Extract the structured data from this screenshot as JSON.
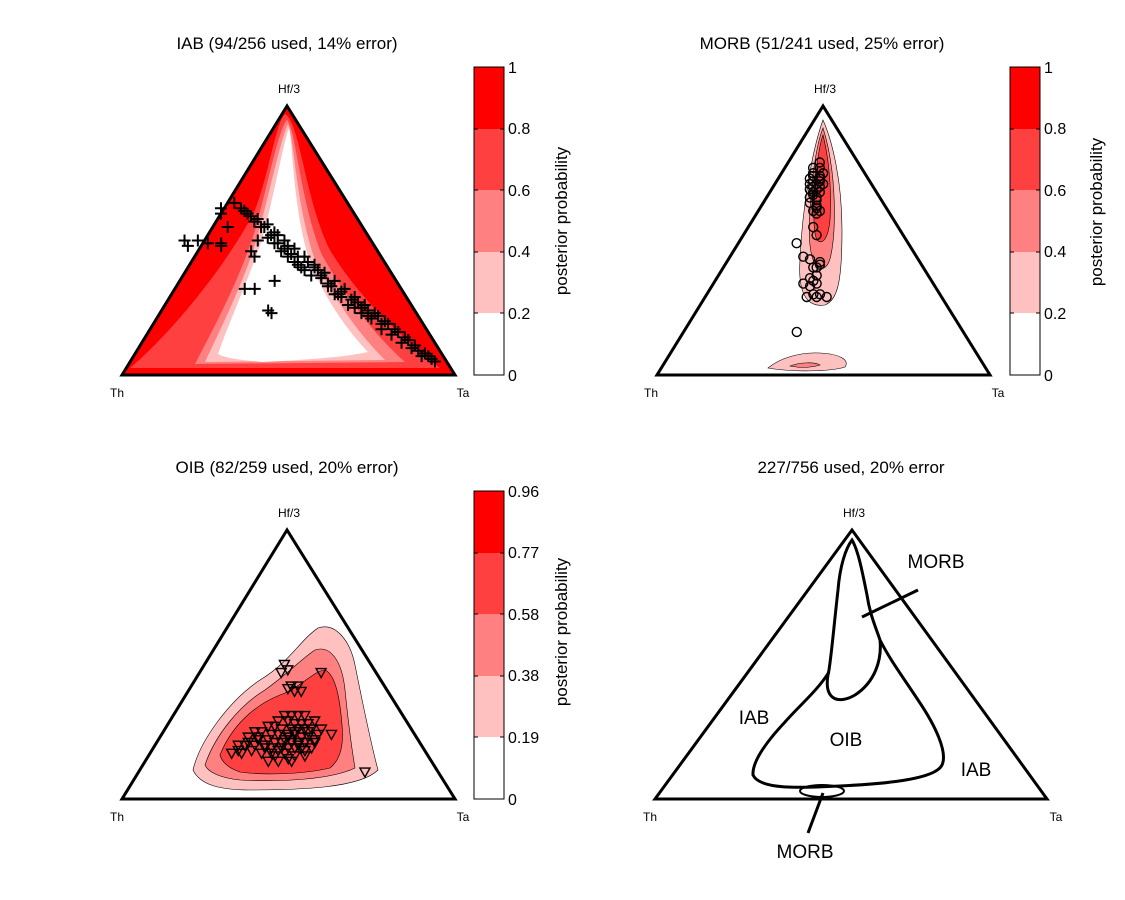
{
  "figure": {
    "colors": {
      "bands": [
        "#ffffff",
        "#ffc0c0",
        "#ff8080",
        "#ff4040",
        "#ff0000"
      ],
      "line": "#000000"
    },
    "vertex_labels": {
      "top": "Hf/3",
      "left": "Th",
      "right": "Ta"
    }
  },
  "chart_data": [
    {
      "type": "ternary_contour",
      "title": "IAB (94/256 used, 14% error)",
      "class": "IAB",
      "used": 94,
      "total": 256,
      "error_percent": 14,
      "marker": "plus",
      "colorbar": {
        "label": "posterior probability",
        "ticks": [
          "0",
          "0.2",
          "0.4",
          "0.6",
          "0.8",
          "1"
        ],
        "range": [
          0,
          1
        ]
      },
      "samples": [
        [
          0.34,
          0.64
        ],
        [
          0.4,
          0.57
        ],
        [
          0.44,
          0.51
        ],
        [
          0.46,
          0.49
        ],
        [
          0.48,
          0.46
        ],
        [
          0.5,
          0.44
        ],
        [
          0.52,
          0.42
        ],
        [
          0.54,
          0.4
        ],
        [
          0.36,
          0.62
        ],
        [
          0.38,
          0.6
        ],
        [
          0.42,
          0.55
        ],
        [
          0.45,
          0.52
        ],
        [
          0.47,
          0.49
        ],
        [
          0.49,
          0.47
        ],
        [
          0.51,
          0.45
        ],
        [
          0.53,
          0.41
        ],
        [
          0.55,
          0.39
        ],
        [
          0.57,
          0.37
        ],
        [
          0.6,
          0.36
        ],
        [
          0.62,
          0.34
        ],
        [
          0.65,
          0.3
        ],
        [
          0.68,
          0.26
        ],
        [
          0.7,
          0.25
        ],
        [
          0.72,
          0.23
        ],
        [
          0.75,
          0.21
        ],
        [
          0.78,
          0.17
        ],
        [
          0.81,
          0.15
        ],
        [
          0.84,
          0.12
        ],
        [
          0.87,
          0.1
        ],
        [
          0.9,
          0.07
        ],
        [
          0.41,
          0.58
        ],
        [
          0.43,
          0.55
        ],
        [
          0.46,
          0.53
        ],
        [
          0.49,
          0.5
        ],
        [
          0.52,
          0.47
        ],
        [
          0.55,
          0.44
        ],
        [
          0.58,
          0.41
        ],
        [
          0.61,
          0.38
        ],
        [
          0.64,
          0.35
        ],
        [
          0.67,
          0.32
        ],
        [
          0.7,
          0.29
        ],
        [
          0.73,
          0.26
        ],
        [
          0.76,
          0.23
        ],
        [
          0.79,
          0.2
        ],
        [
          0.82,
          0.17
        ],
        [
          0.85,
          0.14
        ],
        [
          0.88,
          0.11
        ],
        [
          0.91,
          0.08
        ],
        [
          0.93,
          0.06
        ],
        [
          0.39,
          0.59
        ],
        [
          0.37,
          0.61
        ],
        [
          0.44,
          0.56
        ],
        [
          0.5,
          0.48
        ],
        [
          0.56,
          0.42
        ],
        [
          0.59,
          0.39
        ],
        [
          0.63,
          0.33
        ],
        [
          0.66,
          0.31
        ],
        [
          0.69,
          0.28
        ],
        [
          0.71,
          0.27
        ],
        [
          0.74,
          0.24
        ],
        [
          0.77,
          0.22
        ],
        [
          0.8,
          0.19
        ],
        [
          0.83,
          0.16
        ],
        [
          0.86,
          0.13
        ],
        [
          0.89,
          0.09
        ],
        [
          0.92,
          0.07
        ],
        [
          0.94,
          0.05
        ],
        [
          0.47,
          0.52
        ],
        [
          0.53,
          0.44
        ],
        [
          0.58,
          0.4
        ],
        [
          0.6,
          0.37
        ],
        [
          0.62,
          0.33
        ],
        [
          0.66,
          0.29
        ],
        [
          0.72,
          0.25
        ],
        [
          0.74,
          0.22
        ],
        [
          0.78,
          0.19
        ],
        [
          0.64,
          0.3
        ],
        [
          0.3,
          0.62
        ],
        [
          0.3,
          0.6
        ],
        [
          0.41,
          0.5
        ],
        [
          0.32,
          0.55
        ],
        [
          0.39,
          0.46
        ],
        [
          0.3,
          0.49
        ],
        [
          0.26,
          0.49
        ],
        [
          0.3,
          0.48
        ],
        [
          0.23,
          0.5
        ],
        [
          0.2,
          0.48
        ],
        [
          0.19,
          0.5
        ],
        [
          0.4,
          0.44
        ],
        [
          0.46,
          0.35
        ],
        [
          0.4,
          0.32
        ],
        [
          0.37,
          0.32
        ],
        [
          0.44,
          0.24
        ],
        [
          0.45,
          0.23
        ]
      ]
    },
    {
      "type": "ternary_contour",
      "title": "MORB (51/241 used, 25% error)",
      "class": "MORB",
      "used": 51,
      "total": 241,
      "error_percent": 25,
      "marker": "circle",
      "colorbar": {
        "label": "posterior probability",
        "ticks": [
          "0",
          "0.2",
          "0.4",
          "0.6",
          "0.8",
          "1"
        ],
        "range": [
          0,
          1
        ]
      },
      "samples": [
        [
          0.49,
          0.79
        ],
        [
          0.47,
          0.77
        ],
        [
          0.49,
          0.77
        ],
        [
          0.47,
          0.75
        ],
        [
          0.5,
          0.75
        ],
        [
          0.47,
          0.74
        ],
        [
          0.49,
          0.74
        ],
        [
          0.46,
          0.73
        ],
        [
          0.49,
          0.73
        ],
        [
          0.47,
          0.72
        ],
        [
          0.49,
          0.72
        ],
        [
          0.46,
          0.71
        ],
        [
          0.48,
          0.71
        ],
        [
          0.5,
          0.71
        ],
        [
          0.47,
          0.7
        ],
        [
          0.49,
          0.7
        ],
        [
          0.46,
          0.69
        ],
        [
          0.48,
          0.69
        ],
        [
          0.47,
          0.68
        ],
        [
          0.49,
          0.68
        ],
        [
          0.47,
          0.67
        ],
        [
          0.48,
          0.66
        ],
        [
          0.46,
          0.66
        ],
        [
          0.48,
          0.65
        ],
        [
          0.48,
          0.63
        ],
        [
          0.46,
          0.64
        ],
        [
          0.48,
          0.62
        ],
        [
          0.49,
          0.61
        ],
        [
          0.47,
          0.61
        ],
        [
          0.48,
          0.6
        ],
        [
          0.48,
          0.52
        ],
        [
          0.47,
          0.55
        ],
        [
          0.42,
          0.49
        ],
        [
          0.44,
          0.44
        ],
        [
          0.46,
          0.43
        ],
        [
          0.49,
          0.42
        ],
        [
          0.49,
          0.41
        ],
        [
          0.48,
          0.4
        ],
        [
          0.47,
          0.4
        ],
        [
          0.48,
          0.37
        ],
        [
          0.47,
          0.35
        ],
        [
          0.46,
          0.36
        ],
        [
          0.44,
          0.34
        ],
        [
          0.48,
          0.34
        ],
        [
          0.46,
          0.33
        ],
        [
          0.47,
          0.3
        ],
        [
          0.45,
          0.29
        ],
        [
          0.48,
          0.29
        ],
        [
          0.49,
          0.3
        ],
        [
          0.51,
          0.29
        ],
        [
          0.42,
          0.16
        ]
      ]
    },
    {
      "type": "ternary_contour",
      "title": "OIB (82/259 used, 20% error)",
      "class": "OIB",
      "used": 82,
      "total": 259,
      "error_percent": 20,
      "marker": "triangle-down",
      "colorbar": {
        "label": "posterior probability",
        "ticks": [
          "0",
          "0.19",
          "0.38",
          "0.58",
          "0.77",
          "0.96"
        ],
        "range": [
          0,
          0.96
        ]
      },
      "samples": [
        [
          0.49,
          0.5
        ],
        [
          0.5,
          0.48
        ],
        [
          0.48,
          0.47
        ],
        [
          0.6,
          0.47
        ],
        [
          0.51,
          0.42
        ],
        [
          0.53,
          0.42
        ],
        [
          0.5,
          0.41
        ],
        [
          0.52,
          0.4
        ],
        [
          0.54,
          0.4
        ],
        [
          0.49,
          0.31
        ],
        [
          0.51,
          0.31
        ],
        [
          0.53,
          0.31
        ],
        [
          0.55,
          0.31
        ],
        [
          0.47,
          0.29
        ],
        [
          0.5,
          0.29
        ],
        [
          0.52,
          0.28
        ],
        [
          0.54,
          0.28
        ],
        [
          0.56,
          0.28
        ],
        [
          0.58,
          0.29
        ],
        [
          0.44,
          0.27
        ],
        [
          0.46,
          0.27
        ],
        [
          0.48,
          0.26
        ],
        [
          0.51,
          0.26
        ],
        [
          0.53,
          0.26
        ],
        [
          0.55,
          0.26
        ],
        [
          0.57,
          0.26
        ],
        [
          0.6,
          0.26
        ],
        [
          0.4,
          0.25
        ],
        [
          0.42,
          0.25
        ],
        [
          0.45,
          0.24
        ],
        [
          0.47,
          0.24
        ],
        [
          0.5,
          0.24
        ],
        [
          0.52,
          0.24
        ],
        [
          0.54,
          0.23
        ],
        [
          0.56,
          0.23
        ],
        [
          0.59,
          0.24
        ],
        [
          0.63,
          0.24
        ],
        [
          0.38,
          0.23
        ],
        [
          0.41,
          0.22
        ],
        [
          0.44,
          0.22
        ],
        [
          0.46,
          0.21
        ],
        [
          0.49,
          0.22
        ],
        [
          0.51,
          0.21
        ],
        [
          0.53,
          0.21
        ],
        [
          0.55,
          0.21
        ],
        [
          0.58,
          0.21
        ],
        [
          0.35,
          0.2
        ],
        [
          0.37,
          0.2
        ],
        [
          0.4,
          0.2
        ],
        [
          0.43,
          0.19
        ],
        [
          0.45,
          0.19
        ],
        [
          0.48,
          0.19
        ],
        [
          0.5,
          0.19
        ],
        [
          0.52,
          0.19
        ],
        [
          0.55,
          0.18
        ],
        [
          0.57,
          0.19
        ],
        [
          0.33,
          0.17
        ],
        [
          0.36,
          0.17
        ],
        [
          0.39,
          0.18
        ],
        [
          0.42,
          0.17
        ],
        [
          0.46,
          0.16
        ],
        [
          0.49,
          0.17
        ],
        [
          0.52,
          0.16
        ],
        [
          0.55,
          0.16
        ],
        [
          0.44,
          0.14
        ],
        [
          0.47,
          0.14
        ],
        [
          0.51,
          0.14
        ],
        [
          0.73,
          0.1
        ],
        [
          0.5,
          0.23
        ],
        [
          0.48,
          0.21
        ],
        [
          0.45,
          0.17
        ],
        [
          0.53,
          0.2
        ],
        [
          0.56,
          0.25
        ],
        [
          0.41,
          0.23
        ],
        [
          0.38,
          0.21
        ],
        [
          0.35,
          0.18
        ],
        [
          0.58,
          0.22
        ],
        [
          0.43,
          0.2
        ],
        [
          0.47,
          0.18
        ],
        [
          0.52,
          0.25
        ],
        [
          0.5,
          0.15
        ],
        [
          0.54,
          0.19
        ]
      ]
    },
    {
      "type": "ternary_boundaries",
      "title": "227/756 used, 20% error",
      "used": 227,
      "total": 756,
      "error_percent": 20,
      "region_labels": {
        "morb_upper": "MORB",
        "morb_lower": "MORB",
        "iab_left": "IAB",
        "iab_right": "IAB",
        "oib": "OIB"
      }
    }
  ]
}
